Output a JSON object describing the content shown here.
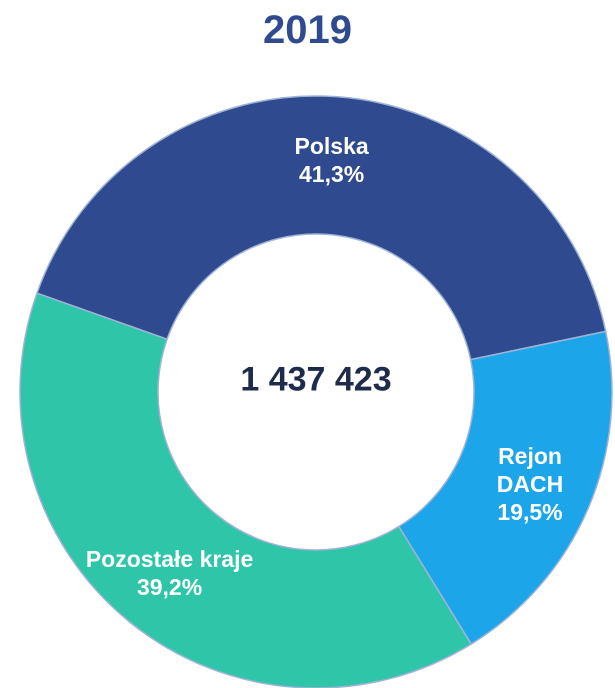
{
  "chart_data": {
    "type": "donut",
    "title": "2019",
    "center_text": "1 437 423",
    "categories": [
      "Polska",
      "Rejon DACH",
      "Pozostałe kraje"
    ],
    "values": [
      41.3,
      19.5,
      39.2
    ],
    "value_labels": [
      "41,3%",
      "19,5%",
      "39,2%"
    ],
    "colors": [
      "#2f4a8e",
      "#1da5ea",
      "#2fc5a9"
    ]
  }
}
